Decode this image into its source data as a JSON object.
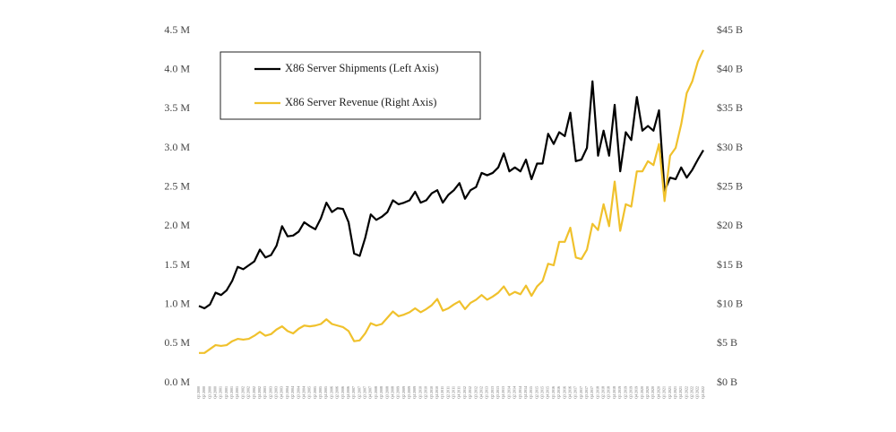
{
  "chart_data": {
    "type": "line",
    "categories": [
      "Q1 2000",
      "Q2 2000",
      "Q3 2000",
      "Q4 2000",
      "Q1 2001",
      "Q2 2001",
      "Q3 2001",
      "Q4 2001",
      "Q1 2002",
      "Q2 2002",
      "Q3 2002",
      "Q4 2002",
      "Q1 2003",
      "Q2 2003",
      "Q3 2003",
      "Q4 2003",
      "Q1 2004",
      "Q2 2004",
      "Q3 2004",
      "Q4 2004",
      "Q1 2005",
      "Q2 2005",
      "Q3 2005",
      "Q4 2005",
      "Q1 2006",
      "Q2 2006",
      "Q3 2006",
      "Q4 2006",
      "Q1 2007",
      "Q2 2007",
      "Q3 2007",
      "Q4 2007",
      "Q1 2008",
      "Q2 2008",
      "Q3 2008",
      "Q4 2008",
      "Q1 2009",
      "Q2 2009",
      "Q3 2009",
      "Q4 2009",
      "Q1 2010",
      "Q2 2010",
      "Q3 2010",
      "Q4 2010",
      "Q1 2011",
      "Q2 2011",
      "Q3 2011",
      "Q4 2011",
      "Q1 2012",
      "Q2 2012",
      "Q3 2012",
      "Q4 2012",
      "Q1 2013",
      "Q2 2013",
      "Q3 2013",
      "Q4 2013",
      "Q1 2014",
      "Q2 2014",
      "Q3 2014",
      "Q4 2014",
      "Q1 2015",
      "Q2 2015",
      "Q3 2015",
      "Q4 2015",
      "Q1 2016",
      "Q2 2016",
      "Q3 2016",
      "Q4 2016",
      "Q1 2017",
      "Q2 2017",
      "Q3 2017",
      "Q4 2017",
      "Q1 2018",
      "Q2 2018",
      "Q3 2018",
      "Q4 2018",
      "Q1 2019",
      "Q2 2019",
      "Q3 2019",
      "Q4 2019",
      "Q1 2020",
      "Q2 2020",
      "Q3 2020",
      "Q4 2020",
      "Q1 2021",
      "Q2 2021",
      "Q3 2021",
      "Q4 2021",
      "Q1 2022",
      "Q2 2022",
      "Q3 2022",
      "Q4 2022"
    ],
    "series": [
      {
        "name": "X86 Server Shipments (Left Axis)",
        "color": "#000000",
        "axis": "y",
        "values": [
          0.98,
          0.95,
          1.0,
          1.15,
          1.12,
          1.18,
          1.3,
          1.48,
          1.45,
          1.5,
          1.55,
          1.7,
          1.6,
          1.63,
          1.75,
          2.0,
          1.87,
          1.88,
          1.93,
          2.05,
          2.0,
          1.96,
          2.1,
          2.3,
          2.18,
          2.23,
          2.22,
          2.05,
          1.65,
          1.62,
          1.85,
          2.15,
          2.08,
          2.12,
          2.18,
          2.33,
          2.28,
          2.3,
          2.33,
          2.44,
          2.3,
          2.33,
          2.42,
          2.46,
          2.3,
          2.4,
          2.46,
          2.55,
          2.35,
          2.46,
          2.5,
          2.68,
          2.65,
          2.68,
          2.75,
          2.93,
          2.7,
          2.75,
          2.7,
          2.85,
          2.6,
          2.8,
          2.8,
          3.18,
          3.05,
          3.2,
          3.15,
          3.45,
          2.83,
          2.85,
          3.0,
          3.85,
          2.9,
          3.22,
          2.9,
          3.55,
          2.7,
          3.2,
          3.1,
          3.65,
          3.22,
          3.28,
          3.22,
          3.48,
          2.45,
          2.62,
          2.6,
          2.75,
          2.62,
          2.72,
          2.85,
          2.97
        ]
      },
      {
        "name": "X86 Server Revenue (Right Axis)",
        "color": "#f0c12c",
        "axis": "y2",
        "values": [
          3.8,
          3.8,
          4.3,
          4.8,
          4.7,
          4.8,
          5.3,
          5.6,
          5.5,
          5.6,
          6.0,
          6.5,
          6.0,
          6.2,
          6.8,
          7.2,
          6.6,
          6.3,
          6.9,
          7.3,
          7.2,
          7.3,
          7.5,
          8.1,
          7.5,
          7.3,
          7.1,
          6.6,
          5.3,
          5.4,
          6.3,
          7.6,
          7.3,
          7.5,
          8.3,
          9.1,
          8.5,
          8.7,
          9.0,
          9.5,
          9.0,
          9.4,
          9.9,
          10.7,
          9.2,
          9.5,
          10.0,
          10.4,
          9.4,
          10.2,
          10.6,
          11.2,
          10.6,
          11.0,
          11.5,
          12.3,
          11.2,
          11.6,
          11.3,
          12.4,
          11.1,
          12.3,
          13.0,
          15.2,
          15.0,
          18.0,
          18.0,
          19.8,
          16.0,
          15.8,
          17.0,
          20.3,
          19.5,
          22.8,
          20.0,
          25.7,
          19.4,
          22.8,
          22.5,
          27.0,
          27.0,
          28.3,
          27.8,
          30.5,
          23.2,
          29.0,
          30.0,
          33.0,
          37.0,
          38.5,
          41.0,
          42.5
        ]
      }
    ],
    "ylim": [
      0,
      4.5
    ],
    "yticks": [
      {
        "value": 0,
        "label": "0.0 M"
      },
      {
        "value": 0.5,
        "label": "0.5 M"
      },
      {
        "value": 1,
        "label": "1.0 M"
      },
      {
        "value": 1.5,
        "label": "1.5 M"
      },
      {
        "value": 2,
        "label": "2.0 M"
      },
      {
        "value": 2.5,
        "label": "2.5 M"
      },
      {
        "value": 3,
        "label": "3.0 M"
      },
      {
        "value": 3.5,
        "label": "3.5 M"
      },
      {
        "value": 4,
        "label": "4.0 M"
      },
      {
        "value": 4.5,
        "label": "4.5 M"
      }
    ],
    "y2lim": [
      0,
      45
    ],
    "y2ticks": [
      {
        "value": 0,
        "label": "$0 B"
      },
      {
        "value": 5,
        "label": "$5 B"
      },
      {
        "value": 10,
        "label": "$10 B"
      },
      {
        "value": 15,
        "label": "$15 B"
      },
      {
        "value": 20,
        "label": "$20 B"
      },
      {
        "value": 25,
        "label": "$25 B"
      },
      {
        "value": 30,
        "label": "$30 B"
      },
      {
        "value": 35,
        "label": "$35 B"
      },
      {
        "value": 40,
        "label": "$40 B"
      },
      {
        "value": 45,
        "label": "$45 B"
      }
    ],
    "legend": "top-left"
  }
}
